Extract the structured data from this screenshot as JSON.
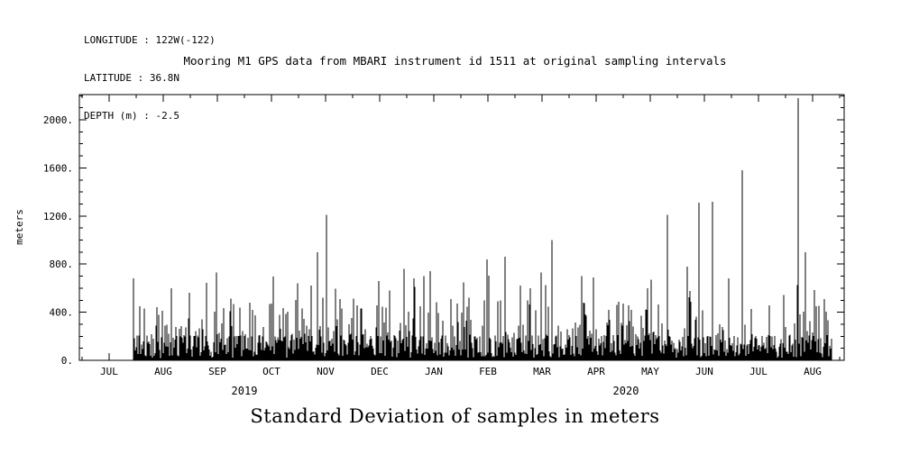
{
  "page": {
    "background": "#ffffff",
    "ink": "#000000"
  },
  "header_info": {
    "lines": [
      "LONGITUDE : 122W(-122)",
      "LATITUDE : 36.8N",
      "DEPTH (m) : -2.5"
    ]
  },
  "chart_data": {
    "type": "line",
    "title": "Mooring M1 GPS data from MBARI instrument id 1511 at original sampling intervals",
    "ylabel": "meters",
    "xlabel": "",
    "caption": "Standard Deviation of samples in meters",
    "grid": false,
    "legend": "none",
    "line_color": "#000000",
    "ylim": [
      0,
      2210
    ],
    "yticks": [
      {
        "value": 0,
        "label": "0."
      },
      {
        "value": 400,
        "label": "400."
      },
      {
        "value": 800,
        "label": "800."
      },
      {
        "value": 1200,
        "label": "1200."
      },
      {
        "value": 1600,
        "label": "1600."
      },
      {
        "value": 2000,
        "label": "2000."
      }
    ],
    "y_minor_step": 100,
    "x_unit": "months (0 = JUL 2019 tick)",
    "xlim": [
      -0.55,
      13.58
    ],
    "month_ticks": [
      "JUL",
      "AUG",
      "SEP",
      "OCT",
      "NOV",
      "DEC",
      "JAN",
      "FEB",
      "MAR",
      "APR",
      "MAY",
      "JUN",
      "JUL",
      "AUG"
    ],
    "year_labels": [
      {
        "text": "2019",
        "month_index": 2.5
      },
      {
        "text": "2020",
        "month_index": 9.55
      }
    ],
    "data_start": 0.45,
    "data_end": 13.35,
    "series_name": "gps-position-standard-deviation",
    "major_spikes": [
      [
        0.45,
        680
      ],
      [
        0.57,
        450
      ],
      [
        0.65,
        430
      ],
      [
        1.15,
        600
      ],
      [
        1.48,
        560
      ],
      [
        1.98,
        730
      ],
      [
        2.65,
        420
      ],
      [
        3.15,
        380
      ],
      [
        3.48,
        640
      ],
      [
        3.73,
        620
      ],
      [
        3.85,
        900
      ],
      [
        4.02,
        1210
      ],
      [
        4.3,
        430
      ],
      [
        4.65,
        430
      ],
      [
        4.98,
        660
      ],
      [
        5.18,
        580
      ],
      [
        5.45,
        760
      ],
      [
        5.82,
        700
      ],
      [
        6.65,
        520
      ],
      [
        6.98,
        840
      ],
      [
        7.32,
        860
      ],
      [
        7.78,
        600
      ],
      [
        7.98,
        730
      ],
      [
        8.18,
        1000
      ],
      [
        8.73,
        700
      ],
      [
        8.95,
        690
      ],
      [
        9.65,
        420
      ],
      [
        9.95,
        600
      ],
      [
        10.32,
        1210
      ],
      [
        10.68,
        780
      ],
      [
        10.9,
        1310
      ],
      [
        11.15,
        1320
      ],
      [
        11.45,
        680
      ],
      [
        11.7,
        1580
      ],
      [
        12.73,
        2180
      ],
      [
        12.87,
        900
      ],
      [
        13.07,
        450
      ]
    ],
    "noise_profile": {
      "band_m": [
        20,
        210
      ],
      "mid_spike_m": [
        200,
        520
      ],
      "mid_spike_fraction": 0.3,
      "high_spike_m": [
        450,
        750
      ],
      "high_spike_fraction": 0.025
    }
  }
}
